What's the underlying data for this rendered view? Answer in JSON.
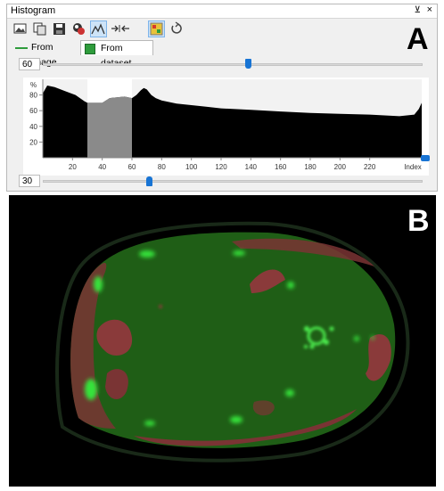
{
  "window": {
    "title": "Histogram",
    "pin": "⊻",
    "close": "×"
  },
  "toolbar": {
    "buttons": [
      {
        "name": "image-icon",
        "active": false
      },
      {
        "name": "copy-icon",
        "active": false
      },
      {
        "name": "save-icon",
        "active": false
      },
      {
        "name": "color-palette-icon",
        "active": false
      },
      {
        "name": "curve-icon",
        "active": true
      },
      {
        "name": "fit-range-icon",
        "active": false
      },
      {
        "name": "overlay-icon",
        "active": true
      },
      {
        "name": "reset-icon",
        "active": false
      }
    ]
  },
  "tabs": [
    {
      "label": "From image",
      "selected": false,
      "color": "#2e9c3c"
    },
    {
      "label": "From dataset",
      "selected": true,
      "color": "#2e9c3c"
    }
  ],
  "panel_labels": {
    "a": "A",
    "b": "B"
  },
  "upper_slider": {
    "value": "60",
    "fraction": 0.54
  },
  "lower_slider": {
    "value": "30",
    "fraction": 0.28
  },
  "chart_data": {
    "type": "area",
    "y_unit": "%",
    "y_ticks": [
      "80",
      "60",
      "40",
      "20"
    ],
    "x_ticks": [
      "20",
      "40",
      "60",
      "80",
      "100",
      "120",
      "140",
      "160",
      "180",
      "200",
      "220"
    ],
    "x_end_label": "Index",
    "xlim": [
      0,
      255
    ],
    "ylim": [
      0,
      100
    ],
    "selection": [
      30,
      60
    ],
    "x": [
      0,
      3,
      8,
      15,
      22,
      28,
      30,
      35,
      40,
      45,
      50,
      55,
      60,
      63,
      66,
      68,
      70,
      73,
      76,
      80,
      90,
      100,
      110,
      120,
      140,
      160,
      180,
      200,
      220,
      240,
      250,
      253,
      255
    ],
    "y": [
      82,
      92,
      90,
      85,
      80,
      72,
      70,
      70,
      70,
      76,
      77,
      78,
      76,
      80,
      86,
      89,
      87,
      80,
      76,
      73,
      69,
      67,
      65,
      63,
      61,
      59,
      57,
      56,
      55,
      53,
      55,
      62,
      70
    ],
    "colors": {
      "fill": "#000000",
      "selection": "#8a8a8a",
      "selection_bg": "#ffffff",
      "bg": "#f2f2f2"
    }
  },
  "scan": {
    "background": "#000000",
    "body_color": "#1f5e16",
    "red_color": "#8a3a3a",
    "spot_color": "#36e33a"
  }
}
